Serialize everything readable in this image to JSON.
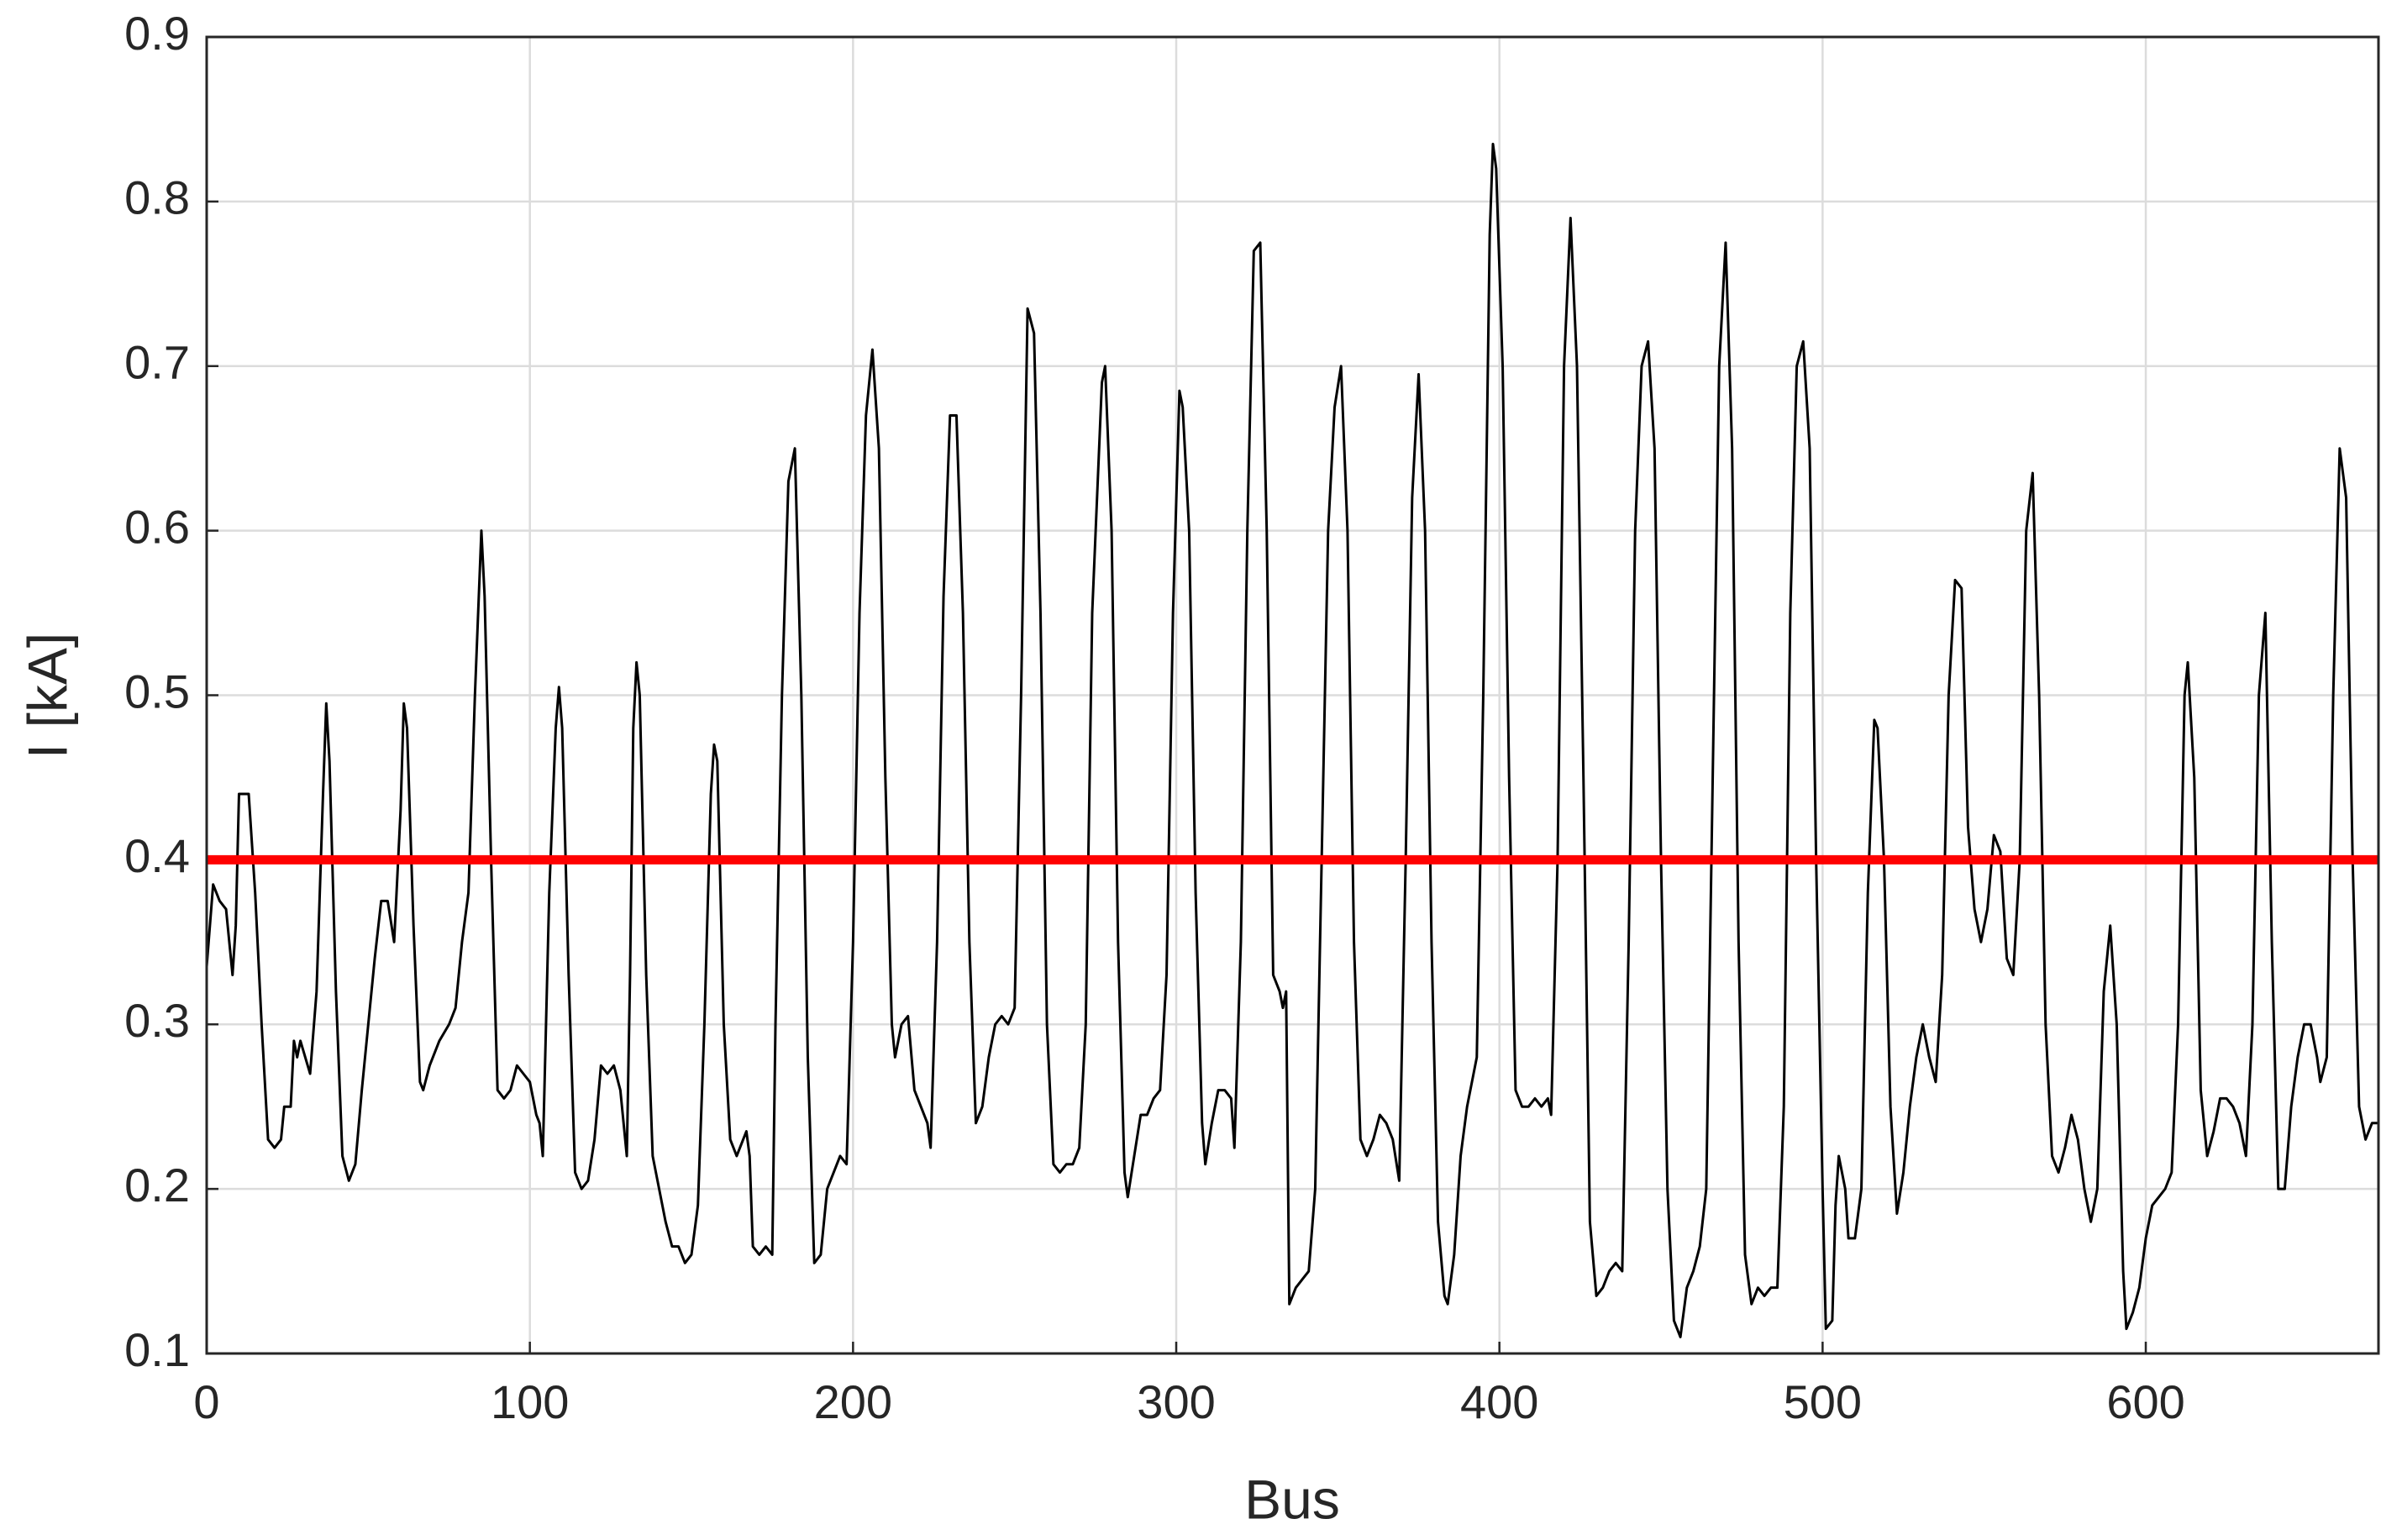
{
  "chart_data": {
    "type": "line",
    "xlabel": "Bus",
    "ylabel": "I [kA]",
    "xlim": [
      0,
      672
    ],
    "xticks": [
      0,
      100,
      200,
      300,
      400,
      500,
      600
    ],
    "ylim": [
      0.1,
      0.9
    ],
    "yticks": [
      0.1,
      0.2,
      0.3,
      0.4,
      0.5,
      0.6,
      0.7,
      0.8,
      0.9
    ],
    "grid": true,
    "hline": {
      "value": 0.4,
      "color": "#ff0000"
    },
    "x": [
      0,
      2,
      4,
      6,
      7,
      8,
      9,
      10,
      13,
      15,
      17,
      19,
      21,
      23,
      24,
      26,
      27,
      28,
      29,
      32,
      34,
      36,
      37,
      38,
      40,
      42,
      44,
      46,
      48,
      50,
      52,
      54,
      56,
      58,
      60,
      61,
      62,
      64,
      66,
      67,
      69,
      72,
      75,
      77,
      79,
      81,
      83,
      85,
      86,
      88,
      90,
      92,
      94,
      96,
      98,
      100,
      102,
      103,
      104,
      106,
      108,
      109,
      110,
      112,
      114,
      116,
      118,
      120,
      122,
      124,
      126,
      128,
      130,
      131,
      132,
      133,
      134,
      136,
      138,
      140,
      142,
      144,
      146,
      148,
      150,
      152,
      154,
      156,
      157,
      158,
      160,
      162,
      164,
      166,
      167,
      168,
      169,
      171,
      173,
      175,
      176,
      178,
      180,
      182,
      184,
      186,
      188,
      190,
      192,
      194,
      196,
      198,
      200,
      202,
      204,
      206,
      208,
      210,
      212,
      213,
      215,
      217,
      219,
      221,
      223,
      224,
      226,
      228,
      230,
      232,
      234,
      236,
      238,
      240,
      242,
      244,
      246,
      248,
      250,
      252,
      254,
      256,
      258,
      260,
      262,
      264,
      266,
      268,
      270,
      272,
      274,
      277,
      278,
      280,
      282,
      284,
      285,
      287,
      289,
      291,
      293,
      295,
      297,
      299,
      301,
      302,
      304,
      306,
      308,
      309,
      311,
      313,
      315,
      317,
      318,
      320,
      322,
      324,
      326,
      328,
      330,
      332,
      333,
      334,
      335,
      337,
      339,
      341,
      343,
      345,
      347,
      349,
      351,
      353,
      355,
      357,
      359,
      361,
      363,
      365,
      367,
      369,
      371,
      373,
      375,
      377,
      379,
      381,
      383,
      384,
      386,
      388,
      390,
      392,
      393,
      395,
      397,
      398,
      399,
      401,
      403,
      405,
      407,
      409,
      411,
      413,
      415,
      416,
      418,
      420,
      422,
      424,
      426,
      428,
      430,
      432,
      434,
      436,
      438,
      440,
      442,
      444,
      446,
      448,
      450,
      452,
      454,
      456,
      458,
      460,
      462,
      464,
      466,
      468,
      470,
      472,
      474,
      476,
      478,
      480,
      482,
      484,
      486,
      488,
      490,
      492,
      494,
      496,
      498,
      500,
      501,
      503,
      504,
      505,
      507,
      508,
      510,
      512,
      514,
      516,
      517,
      519,
      521,
      523,
      525,
      527,
      529,
      531,
      533,
      535,
      537,
      539,
      541,
      543,
      545,
      547,
      549,
      551,
      553,
      555,
      557,
      559,
      561,
      563,
      565,
      567,
      569,
      571,
      573,
      575,
      577,
      579,
      581,
      583,
      585,
      587,
      589,
      591,
      593,
      594,
      596,
      598,
      600,
      602,
      604,
      606,
      608,
      610,
      612,
      613,
      615,
      617,
      619,
      621,
      623,
      625,
      627,
      629,
      631,
      633,
      635,
      637,
      639,
      641,
      643,
      645,
      647,
      649,
      651,
      653,
      654,
      656,
      658,
      660,
      662,
      664,
      666,
      668,
      670,
      672
    ],
    "series": [
      {
        "color": "#000000",
        "values": [
          0.335,
          0.385,
          0.375,
          0.37,
          0.35,
          0.33,
          0.36,
          0.44,
          0.44,
          0.38,
          0.3,
          0.23,
          0.225,
          0.23,
          0.25,
          0.25,
          0.29,
          0.28,
          0.29,
          0.27,
          0.32,
          0.44,
          0.495,
          0.46,
          0.32,
          0.22,
          0.205,
          0.215,
          0.26,
          0.3,
          0.34,
          0.375,
          0.375,
          0.35,
          0.43,
          0.495,
          0.48,
          0.36,
          0.265,
          0.26,
          0.275,
          0.29,
          0.3,
          0.31,
          0.35,
          0.38,
          0.5,
          0.6,
          0.56,
          0.4,
          0.26,
          0.255,
          0.26,
          0.275,
          0.27,
          0.265,
          0.245,
          0.24,
          0.22,
          0.38,
          0.48,
          0.505,
          0.48,
          0.33,
          0.21,
          0.2,
          0.205,
          0.23,
          0.275,
          0.27,
          0.275,
          0.26,
          0.22,
          0.33,
          0.48,
          0.52,
          0.5,
          0.33,
          0.22,
          0.2,
          0.18,
          0.165,
          0.165,
          0.155,
          0.16,
          0.19,
          0.3,
          0.44,
          0.47,
          0.46,
          0.3,
          0.23,
          0.22,
          0.23,
          0.235,
          0.22,
          0.165,
          0.16,
          0.165,
          0.16,
          0.3,
          0.5,
          0.63,
          0.65,
          0.5,
          0.28,
          0.155,
          0.16,
          0.2,
          0.21,
          0.22,
          0.215,
          0.35,
          0.55,
          0.67,
          0.71,
          0.65,
          0.45,
          0.3,
          0.28,
          0.3,
          0.305,
          0.26,
          0.25,
          0.24,
          0.225,
          0.35,
          0.56,
          0.67,
          0.67,
          0.55,
          0.35,
          0.24,
          0.25,
          0.28,
          0.3,
          0.305,
          0.3,
          0.31,
          0.5,
          0.735,
          0.72,
          0.55,
          0.3,
          0.215,
          0.21,
          0.215,
          0.215,
          0.225,
          0.3,
          0.55,
          0.69,
          0.7,
          0.6,
          0.35,
          0.21,
          0.195,
          0.22,
          0.245,
          0.245,
          0.255,
          0.26,
          0.33,
          0.55,
          0.685,
          0.675,
          0.6,
          0.38,
          0.24,
          0.215,
          0.24,
          0.26,
          0.26,
          0.255,
          0.225,
          0.35,
          0.6,
          0.77,
          0.775,
          0.6,
          0.33,
          0.32,
          0.31,
          0.32,
          0.13,
          0.14,
          0.145,
          0.15,
          0.2,
          0.4,
          0.6,
          0.675,
          0.7,
          0.6,
          0.35,
          0.23,
          0.22,
          0.23,
          0.245,
          0.24,
          0.23,
          0.205,
          0.4,
          0.62,
          0.695,
          0.6,
          0.35,
          0.18,
          0.135,
          0.13,
          0.16,
          0.22,
          0.25,
          0.27,
          0.28,
          0.5,
          0.78,
          0.835,
          0.82,
          0.7,
          0.45,
          0.26,
          0.25,
          0.25,
          0.255,
          0.25,
          0.255,
          0.245,
          0.4,
          0.7,
          0.79,
          0.7,
          0.45,
          0.18,
          0.135,
          0.14,
          0.15,
          0.155,
          0.15,
          0.35,
          0.6,
          0.7,
          0.715,
          0.65,
          0.4,
          0.2,
          0.12,
          0.11,
          0.14,
          0.15,
          0.165,
          0.2,
          0.45,
          0.7,
          0.775,
          0.65,
          0.35,
          0.16,
          0.13,
          0.14,
          0.135,
          0.14,
          0.14,
          0.25,
          0.55,
          0.7,
          0.715,
          0.65,
          0.4,
          0.2,
          0.115,
          0.12,
          0.19,
          0.22,
          0.2,
          0.17,
          0.17,
          0.2,
          0.38,
          0.485,
          0.48,
          0.4,
          0.25,
          0.185,
          0.21,
          0.25,
          0.28,
          0.3,
          0.28,
          0.265,
          0.33,
          0.5,
          0.57,
          0.565,
          0.42,
          0.37,
          0.35,
          0.37,
          0.415,
          0.405,
          0.34,
          0.33,
          0.4,
          0.6,
          0.635,
          0.5,
          0.3,
          0.22,
          0.21,
          0.225,
          0.245,
          0.23,
          0.2,
          0.18,
          0.2,
          0.32,
          0.36,
          0.3,
          0.15,
          0.115,
          0.125,
          0.14,
          0.17,
          0.19,
          0.195,
          0.2,
          0.21,
          0.3,
          0.5,
          0.52,
          0.45,
          0.26,
          0.22,
          0.235,
          0.255,
          0.255,
          0.25,
          0.24,
          0.22,
          0.3,
          0.5,
          0.55,
          0.35,
          0.2,
          0.2,
          0.25,
          0.28,
          0.3,
          0.3,
          0.28,
          0.265,
          0.28,
          0.5,
          0.65,
          0.62,
          0.4,
          0.25,
          0.23,
          0.24,
          0.24
        ]
      }
    ]
  }
}
